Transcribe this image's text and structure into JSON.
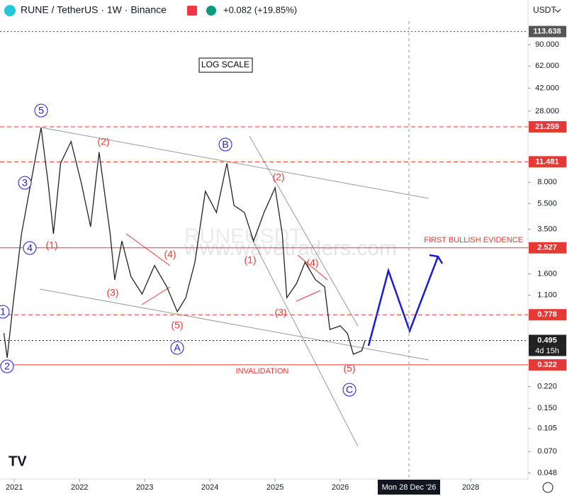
{
  "header": {
    "symbol": "RUNE / TetherUS · 1W · Binance",
    "change": "+0.082 (+19.85%)",
    "currency": "USDT"
  },
  "chart_data": {
    "type": "line",
    "log_scale": true,
    "color": "#222222",
    "x": [
      2020.84,
      2020.89,
      2020.98,
      2021.11,
      2021.27,
      2021.41,
      2021.52,
      2021.6,
      2021.71,
      2021.87,
      2022.03,
      2022.17,
      2022.3,
      2022.47,
      2022.54,
      2022.65,
      2022.79,
      2022.96,
      2023.15,
      2023.34,
      2023.5,
      2023.63,
      2023.77,
      2023.93,
      2024.1,
      2024.26,
      2024.37,
      2024.53,
      2024.67,
      2024.83,
      2025.0,
      2025.11,
      2025.18,
      2025.33,
      2025.46,
      2025.62,
      2025.76,
      2025.84,
      2026.0,
      2026.11,
      2026.2,
      2026.33,
      2026.38
    ],
    "values": [
      0.564,
      0.365,
      0.93,
      3.23,
      8.8,
      21.0,
      7.8,
      3.23,
      11.2,
      16.4,
      7.8,
      3.66,
      13.6,
      3.23,
      1.44,
      2.85,
      1.52,
      1.12,
      1.85,
      1.27,
      0.82,
      1.05,
      1.96,
      6.83,
      4.7,
      11.2,
      5.33,
      4.7,
      2.85,
      4.7,
      7.27,
      3.23,
      1.05,
      1.35,
      1.96,
      1.44,
      1.27,
      0.6,
      0.64,
      0.56,
      0.388,
      0.413,
      0.495
    ],
    "xlim": [
      2020.78,
      2028.88
    ],
    "xticks": [
      2021,
      2022,
      2023,
      2024,
      2025,
      2026,
      2028
    ],
    "ylim": [
      0.0411,
      132.9
    ],
    "yticks": [
      {
        "value": 90,
        "label": "90.000"
      },
      {
        "value": 62,
        "label": "62.000"
      },
      {
        "value": 42,
        "label": "42.000"
      },
      {
        "value": 28,
        "label": "28.000"
      },
      {
        "value": 8,
        "label": "8.000"
      },
      {
        "value": 5.5,
        "label": "5.500"
      },
      {
        "value": 3.5,
        "label": "3.500"
      },
      {
        "value": 1.6,
        "label": "1.600"
      },
      {
        "value": 1.1,
        "label": "1.100"
      },
      {
        "value": 0.22,
        "label": "0.220"
      },
      {
        "value": 0.15,
        "label": "0.150"
      },
      {
        "value": 0.105,
        "label": "0.105"
      },
      {
        "value": 0.07,
        "label": "0.070"
      },
      {
        "value": 0.048,
        "label": "0.048"
      }
    ],
    "levels": [
      {
        "value": 113.638,
        "color": "#555555",
        "style": "dotted"
      },
      {
        "value": 21.259,
        "color": "#e53935",
        "style": "dashed"
      },
      {
        "value": 11.481,
        "color": "#e53935",
        "style": "dashed"
      },
      {
        "value": 2.527,
        "color": "#e53935",
        "style": "solid"
      },
      {
        "value": 0.778,
        "color": "#e53935",
        "style": "dashed"
      },
      {
        "value": 0.495,
        "color": "#222222",
        "style": "dotted"
      },
      {
        "value": 0.322,
        "color": "#e53935",
        "style": "solid"
      }
    ],
    "countdown": "4d 15h",
    "crosshair_date": "Mon 28 Dec '26",
    "scale_note": "LOG SCALE",
    "bullish_note": "FIRST BULLISH EVIDENCE",
    "invalidation_note": "INVALIDATION",
    "watermark": "www.wavetraders.com",
    "watermark_symbol": "RUNEUSDT",
    "wave_labels": [
      "5",
      "3",
      "4",
      "1",
      "2",
      "B",
      "A",
      "C",
      "(1)",
      "(2)",
      "(3)",
      "(4)",
      "(5)",
      "(1)",
      "(2)",
      "(3)",
      "(4)",
      "(5)"
    ]
  }
}
